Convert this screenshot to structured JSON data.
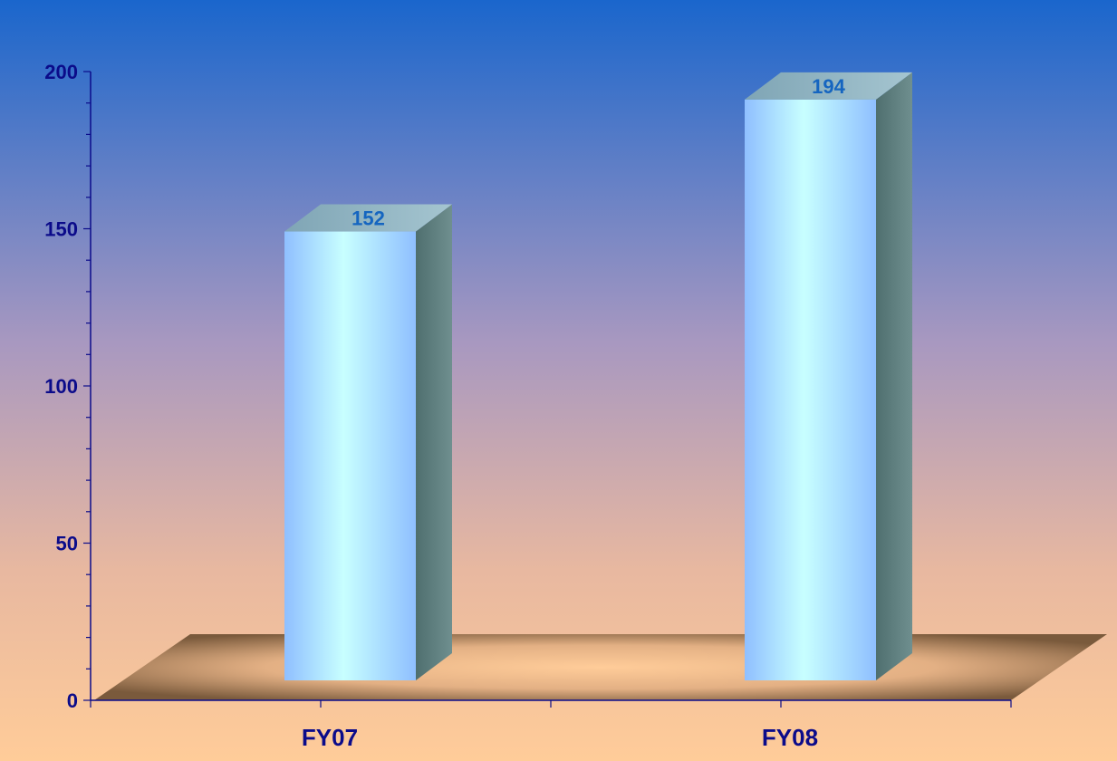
{
  "chart_data": {
    "type": "bar",
    "categories": [
      "FY07",
      "FY08"
    ],
    "values": [
      152,
      194
    ],
    "ylim": [
      0,
      200
    ],
    "y_ticks": [
      0,
      50,
      100,
      150,
      200
    ],
    "y_tick_labels": [
      "0",
      "50",
      "100",
      "150",
      "200"
    ],
    "grid": false,
    "legend": "none",
    "style": "3d",
    "colors": {
      "background_top": "#1a66cc",
      "background_bottom": "#ffcc99",
      "bar_front_light": "#c8ffff",
      "bar_front_dark": "#8fbfff",
      "bar_side": "#5f7f7f",
      "bar_top": "#8fb5c5",
      "floor": "#8b6a48",
      "axis": "#0b0b8a",
      "data_label": "#1565c0"
    }
  }
}
